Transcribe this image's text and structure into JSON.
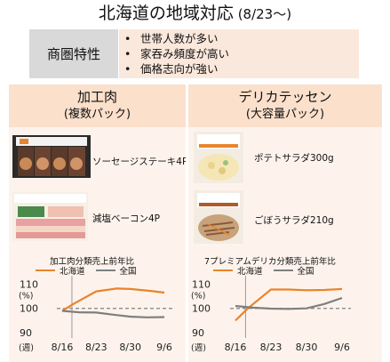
{
  "header": {
    "title_main": "北海道の地域対応",
    "title_sub": " (8/23〜)"
  },
  "traits": {
    "label": "商圏特性",
    "items": [
      "世帯人数が多い",
      "家吞み頻度が高い",
      "価格志向が強い"
    ]
  },
  "columns": [
    {
      "title": "加工肉",
      "subtitle": "(複数パック)",
      "products": [
        {
          "name": "ソーセージステーキ4P"
        },
        {
          "name": "減塩ベーコン4P"
        }
      ]
    },
    {
      "title": "デリカテッセン",
      "subtitle": "(大容量パック)",
      "products": [
        {
          "name": "ポテトサラダ300g"
        },
        {
          "name": "ごぼうサラダ210g"
        }
      ]
    }
  ],
  "colors": {
    "hokkaido": "#e8842c",
    "national": "#7f7f7f",
    "baseline": "#808080"
  },
  "chart_data": [
    {
      "type": "line",
      "title": "加工肉分類売上前年比",
      "ylabel": "(%)",
      "xlabel": "(週)",
      "x": [
        "8/16",
        "8/23",
        "8/30",
        "9/6"
      ],
      "xticks": [
        "8/16",
        "8/23",
        "8/30",
        "9/6"
      ],
      "yticks": [
        110,
        100,
        90
      ],
      "ylim": [
        90,
        112
      ],
      "reference_line": 100,
      "marker_at": "8/18",
      "series": [
        {
          "name": "北海道",
          "x": [
            0,
            0.35,
            1.0,
            1.6,
            2.0,
            2.6,
            3.0
          ],
          "values": [
            99,
            102,
            107,
            108.2,
            108,
            107.2,
            106.5
          ]
        },
        {
          "name": "全国",
          "x": [
            0,
            0.5,
            1.0,
            1.5,
            2.0,
            2.5,
            3.0
          ],
          "values": [
            99,
            98.4,
            98.3,
            97.4,
            96.6,
            96.3,
            96.4
          ]
        }
      ]
    },
    {
      "type": "line",
      "title": "7プレミアムデリカ分類売上前年比",
      "ylabel": "(%)",
      "xlabel": "(週)",
      "x": [
        "8/16",
        "8/23",
        "8/30",
        "9/6"
      ],
      "xticks": [
        "8/16",
        "8/23",
        "8/30",
        "9/6"
      ],
      "yticks": [
        110,
        100,
        90
      ],
      "ylim": [
        90,
        112
      ],
      "reference_line": 100,
      "marker_at": "8/18",
      "series": [
        {
          "name": "北海道",
          "x": [
            0,
            0.35,
            1.0,
            1.5,
            2.0,
            2.5,
            3.0
          ],
          "values": [
            95,
            100,
            107.8,
            107.8,
            107.5,
            107.6,
            108
          ]
        },
        {
          "name": "全国",
          "x": [
            0,
            0.5,
            1.0,
            1.5,
            2.0,
            2.5,
            3.0
          ],
          "values": [
            101,
            100.3,
            99.9,
            99.8,
            100,
            101.8,
            104.3
          ]
        }
      ]
    }
  ]
}
